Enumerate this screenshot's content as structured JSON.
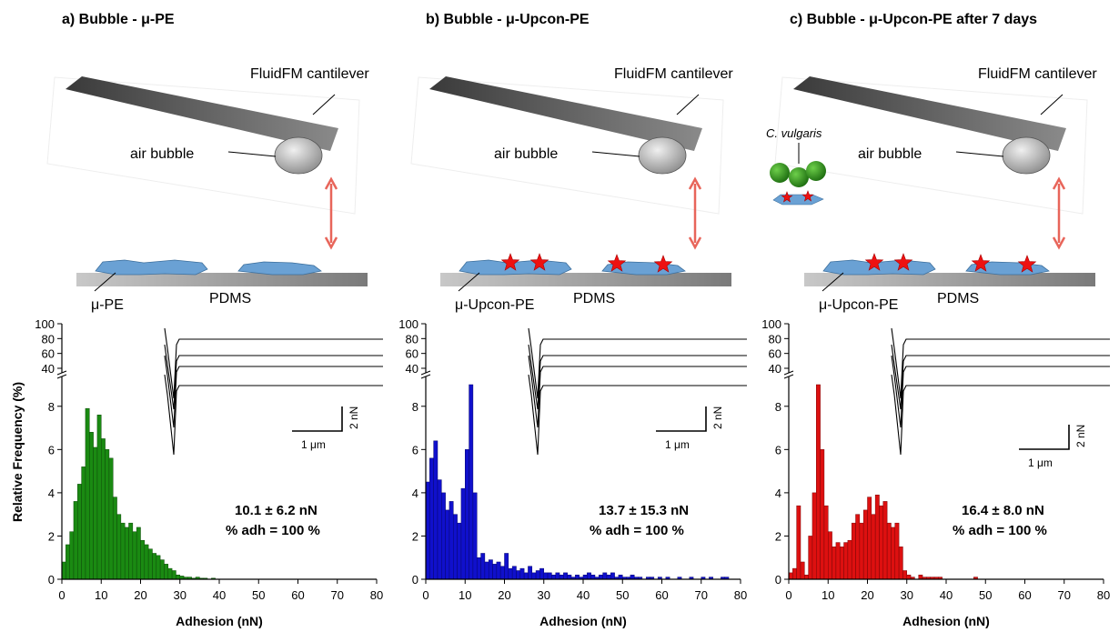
{
  "figure": {
    "ylabel": "Relative Frequency (%)",
    "panels": [
      {
        "title": "a) Bubble - μ-PE",
        "labels": {
          "cantilever": "FluidFM cantilever",
          "bubble": "air bubble",
          "particle": "μ-PE",
          "substrate": "PDMS"
        },
        "stars": false,
        "algae": false,
        "stat1": "10.1 ± 6.2 nN",
        "stat2": "% adh = 100 %",
        "scale_x": "1 μm",
        "scale_y": "2 nN",
        "color": "#1a8a12",
        "stroke": "#0d4a08"
      },
      {
        "title": "b) Bubble - μ-Upcon-PE",
        "labels": {
          "cantilever": "FluidFM cantilever",
          "bubble": "air bubble",
          "particle": "μ-Upcon-PE",
          "substrate": "PDMS"
        },
        "stars": true,
        "algae": false,
        "stat1": "13.7 ± 15.3 nN",
        "stat2": "% adh = 100 %",
        "scale_x": "1 μm",
        "scale_y": "2 nN",
        "color": "#1010cc",
        "stroke": "#050570"
      },
      {
        "title": "c) Bubble - μ-Upcon-PE after 7 days",
        "labels": {
          "cantilever": "FluidFM cantilever",
          "bubble": "air bubble",
          "particle": "μ-Upcon-PE",
          "substrate": "PDMS",
          "algae": "C. vulgaris"
        },
        "stars": true,
        "algae": true,
        "stat1": "16.4 ± 8.0 nN",
        "stat2": "% adh = 100 %",
        "scale_x": "1 μm",
        "scale_y": "2 nN",
        "color": "#dd1010",
        "stroke": "#7a0505"
      }
    ]
  },
  "chart_data": [
    {
      "type": "bar",
      "xlabel": "Adhesion (nN)",
      "ylabel": "Relative Frequency (%)",
      "xlim": [
        0,
        80
      ],
      "xticks": [
        0,
        10,
        20,
        30,
        40,
        50,
        60,
        70,
        80
      ],
      "ylim_lower": [
        0,
        9
      ],
      "yticks_lower": [
        0,
        2,
        4,
        6,
        8
      ],
      "yticks_upper": [
        40,
        60,
        80,
        100
      ],
      "bin_width": 1,
      "x": [
        1,
        2,
        3,
        4,
        5,
        6,
        7,
        8,
        9,
        10,
        11,
        12,
        13,
        14,
        15,
        16,
        17,
        18,
        19,
        20,
        21,
        22,
        23,
        24,
        25,
        26,
        27,
        28,
        29,
        30,
        31,
        32,
        33,
        34,
        35,
        36,
        37,
        38,
        39,
        40
      ],
      "values": [
        0.8,
        1.6,
        2.2,
        3.6,
        4.4,
        5.2,
        7.9,
        6.8,
        6.1,
        7.6,
        6.5,
        6.0,
        5.6,
        3.8,
        3.0,
        2.6,
        2.4,
        2.6,
        2.2,
        2.4,
        1.8,
        1.6,
        1.4,
        1.2,
        1.1,
        0.9,
        0.7,
        0.5,
        0.4,
        0.2,
        0.15,
        0.1,
        0.1,
        0.05,
        0.1,
        0.05,
        0.05,
        0,
        0.05,
        0
      ]
    },
    {
      "type": "bar",
      "xlabel": "Adhesion (nN)",
      "ylabel": "Relative Frequency (%)",
      "xlim": [
        0,
        80
      ],
      "xticks": [
        0,
        10,
        20,
        30,
        40,
        50,
        60,
        70,
        80
      ],
      "ylim_lower": [
        0,
        9
      ],
      "yticks_lower": [
        0,
        2,
        4,
        6,
        8
      ],
      "yticks_upper": [
        40,
        60,
        80,
        100
      ],
      "bin_width": 1,
      "x": [
        1,
        2,
        3,
        4,
        5,
        6,
        7,
        8,
        9,
        10,
        11,
        12,
        13,
        14,
        15,
        16,
        17,
        18,
        19,
        20,
        21,
        22,
        23,
        24,
        25,
        26,
        27,
        28,
        29,
        30,
        31,
        32,
        33,
        34,
        35,
        36,
        37,
        38,
        39,
        40,
        41,
        42,
        43,
        44,
        45,
        46,
        47,
        48,
        49,
        50,
        51,
        52,
        53,
        54,
        55,
        56,
        57,
        58,
        59,
        60,
        61,
        62,
        63,
        64,
        65,
        66,
        67,
        68,
        69,
        70,
        71,
        72,
        73,
        74,
        75,
        76,
        77
      ],
      "values": [
        4.5,
        5.6,
        6.4,
        4.6,
        4.0,
        3.2,
        3.6,
        3.0,
        2.6,
        4.2,
        6.0,
        9.0,
        4.0,
        1.0,
        1.2,
        0.8,
        0.9,
        0.7,
        0.8,
        0.6,
        1.2,
        0.5,
        0.6,
        0.4,
        0.5,
        0.3,
        0.6,
        0.3,
        0.4,
        0.5,
        0.3,
        0.3,
        0.2,
        0.3,
        0.2,
        0.3,
        0.2,
        0.1,
        0.2,
        0.1,
        0.2,
        0.3,
        0.2,
        0.1,
        0.2,
        0.3,
        0.2,
        0.3,
        0.1,
        0.2,
        0.1,
        0.1,
        0.2,
        0.1,
        0.1,
        0,
        0.1,
        0.1,
        0,
        0.1,
        0,
        0.1,
        0,
        0,
        0.1,
        0,
        0,
        0.1,
        0,
        0,
        0.1,
        0,
        0.1,
        0,
        0,
        0.1,
        0.1
      ]
    },
    {
      "type": "bar",
      "xlabel": "Adhesion (nN)",
      "ylabel": "Relative Frequency (%)",
      "xlim": [
        0,
        80
      ],
      "xticks": [
        0,
        10,
        20,
        30,
        40,
        50,
        60,
        70,
        80
      ],
      "ylim_lower": [
        0,
        9
      ],
      "yticks_lower": [
        0,
        2,
        4,
        6,
        8
      ],
      "yticks_upper": [
        40,
        60,
        80,
        100
      ],
      "bin_width": 1,
      "x": [
        1,
        2,
        3,
        4,
        5,
        6,
        7,
        8,
        9,
        10,
        11,
        12,
        13,
        14,
        15,
        16,
        17,
        18,
        19,
        20,
        21,
        22,
        23,
        24,
        25,
        26,
        27,
        28,
        29,
        30,
        31,
        32,
        33,
        34,
        35,
        36,
        37,
        38,
        39,
        40,
        41,
        42,
        43,
        44,
        45,
        46,
        47,
        48,
        49,
        50
      ],
      "values": [
        0.3,
        0.5,
        3.4,
        0.8,
        0.2,
        2.0,
        4.0,
        9.0,
        6.0,
        3.4,
        2.2,
        1.5,
        1.7,
        1.5,
        1.7,
        1.8,
        2.6,
        3.0,
        2.6,
        3.2,
        3.8,
        3.0,
        3.9,
        3.4,
        3.6,
        2.6,
        2.4,
        2.6,
        1.5,
        0.4,
        0.2,
        0.1,
        0,
        0.2,
        0.1,
        0.1,
        0.1,
        0.1,
        0.1,
        0,
        0,
        0,
        0,
        0,
        0,
        0,
        0,
        0.1,
        0,
        0
      ]
    }
  ]
}
